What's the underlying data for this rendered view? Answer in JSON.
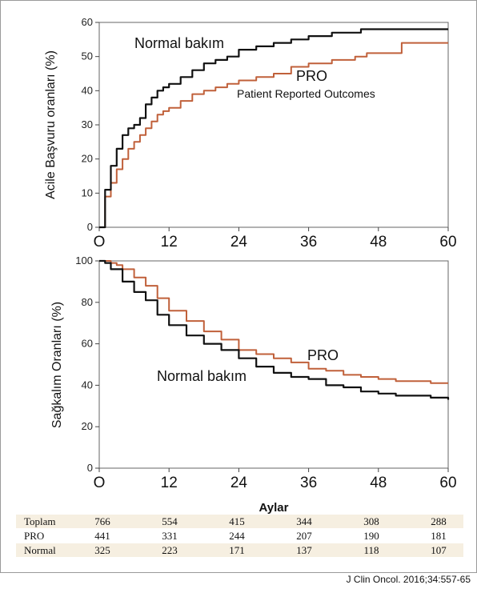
{
  "colors": {
    "normal": "#111111",
    "pro": "#c0603a",
    "row_stripe": "#f6efe1"
  },
  "chart_data": [
    {
      "type": "line",
      "ylabel": "Acile Başvuru oranları (%)",
      "ylim": [
        0,
        60
      ],
      "yticks": [
        "0",
        "10",
        "20",
        "30",
        "40",
        "50",
        "60"
      ],
      "xlim": [
        0,
        60
      ],
      "xticks": [
        "O",
        "12",
        "24",
        "36",
        "48",
        "60"
      ],
      "annotations": {
        "normal": "Normal bakım",
        "pro": "PRO",
        "pro_full": "Patient Reported Outcomes"
      },
      "series": [
        {
          "name": "Normal bakım",
          "x": [
            0,
            1,
            2,
            3,
            4,
            5,
            6,
            7,
            8,
            9,
            10,
            11,
            12,
            14,
            16,
            18,
            20,
            22,
            24,
            27,
            30,
            33,
            36,
            40,
            45,
            48,
            50,
            55,
            60
          ],
          "y": [
            0,
            11,
            18,
            23,
            27,
            29,
            30,
            32,
            36,
            38,
            40,
            41,
            42,
            44,
            46,
            48,
            49,
            50,
            52,
            53,
            54,
            55,
            56,
            57,
            58,
            58,
            58,
            58,
            58
          ]
        },
        {
          "name": "PRO",
          "x": [
            0,
            1,
            2,
            3,
            4,
            5,
            6,
            7,
            8,
            9,
            10,
            11,
            12,
            14,
            16,
            18,
            20,
            22,
            24,
            27,
            30,
            33,
            36,
            40,
            44,
            46,
            48,
            50,
            52,
            56,
            60
          ],
          "y": [
            0,
            9,
            13,
            17,
            20,
            23,
            25,
            27,
            29,
            31,
            33,
            34,
            35,
            37,
            39,
            40,
            41,
            42,
            43,
            44,
            45,
            47,
            48,
            49,
            50,
            51,
            51,
            51,
            54,
            54,
            54
          ]
        }
      ]
    },
    {
      "type": "line",
      "ylabel": "Sağkalım Oranları (%)",
      "xlabel": "Aylar",
      "ylim": [
        0,
        100
      ],
      "yticks": [
        "0",
        "20",
        "40",
        "60",
        "80",
        "100"
      ],
      "xlim": [
        0,
        60
      ],
      "xticks": [
        "O",
        "12",
        "24",
        "36",
        "48",
        "60"
      ],
      "annotations": {
        "normal": "Normal bakım",
        "pro": "PRO"
      },
      "series": [
        {
          "name": "Normal bakım",
          "x": [
            0,
            1,
            2,
            4,
            6,
            8,
            10,
            12,
            15,
            18,
            21,
            24,
            27,
            30,
            33,
            36,
            39,
            42,
            45,
            48,
            51,
            54,
            57,
            60
          ],
          "y": [
            100,
            99,
            96,
            90,
            85,
            81,
            74,
            69,
            64,
            60,
            57,
            53,
            49,
            46,
            44,
            43,
            40,
            39,
            37,
            36,
            35,
            35,
            34,
            33
          ]
        },
        {
          "name": "PRO",
          "x": [
            0,
            1,
            2,
            3,
            4,
            6,
            8,
            10,
            12,
            15,
            18,
            21,
            24,
            27,
            30,
            33,
            36,
            39,
            42,
            45,
            48,
            51,
            54,
            57,
            60
          ],
          "y": [
            100,
            100,
            99,
            98,
            96,
            92,
            88,
            82,
            76,
            71,
            66,
            62,
            57,
            55,
            53,
            51,
            48,
            47,
            45,
            44,
            43,
            42,
            42,
            41,
            41
          ]
        }
      ]
    }
  ],
  "risk_table": {
    "rows": [
      {
        "label": "Toplam",
        "values": [
          "766",
          "554",
          "415",
          "344",
          "308",
          "288"
        ]
      },
      {
        "label": "PRO",
        "values": [
          "441",
          "331",
          "244",
          "207",
          "190",
          "181"
        ]
      },
      {
        "label": "Normal",
        "values": [
          "325",
          "223",
          "171",
          "137",
          "118",
          "107"
        ]
      }
    ]
  },
  "citation": "J Clin Oncol. 2016;34:557-65"
}
